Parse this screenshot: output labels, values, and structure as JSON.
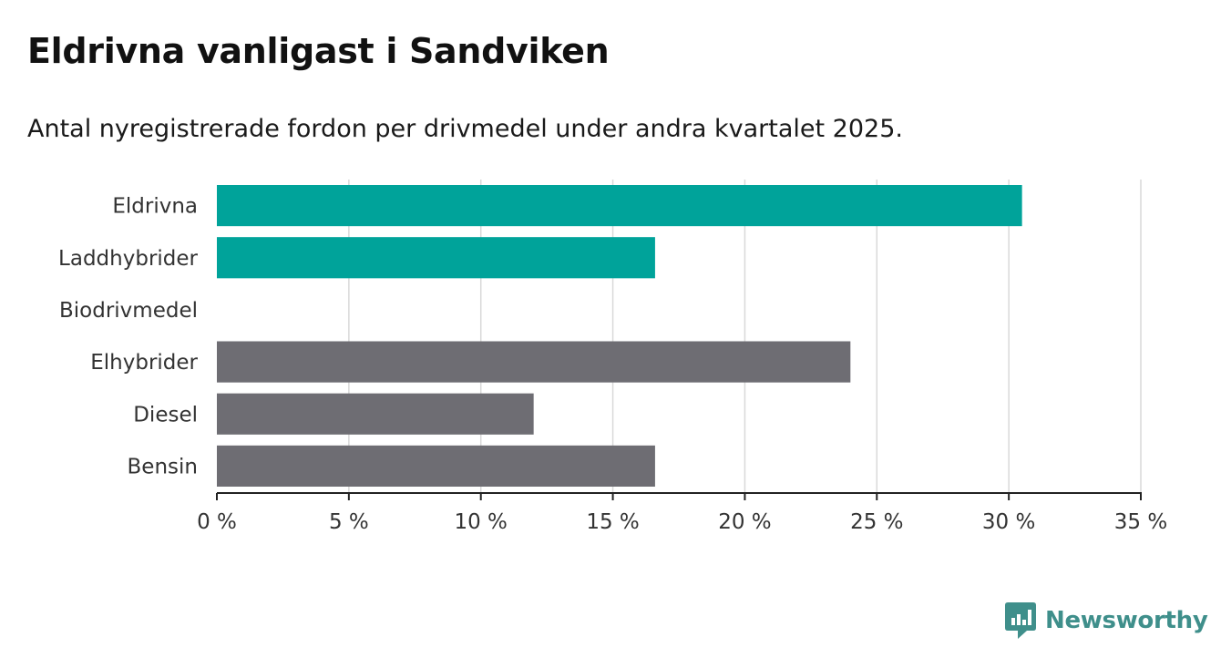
{
  "header": {
    "title": "Eldrivna vanligast i Sandviken",
    "subtitle": "Antal nyregistrerade fordon per drivmedel under andra kvartalet 2025."
  },
  "chart_data": {
    "type": "bar",
    "orientation": "horizontal",
    "categories": [
      "Eldrivna",
      "Laddhybrider",
      "Biodrivmedel",
      "Elhybrider",
      "Diesel",
      "Bensin"
    ],
    "values": [
      30.5,
      16.6,
      0,
      24.0,
      12.0,
      16.6
    ],
    "colors": [
      "#00a39a",
      "#00a39a",
      "#00a39a",
      "#6e6d73",
      "#6e6d73",
      "#6e6d73"
    ],
    "xlim": [
      0,
      35
    ],
    "xticks": [
      0,
      5,
      10,
      15,
      20,
      25,
      30,
      35
    ],
    "xtick_labels": [
      "0 %",
      "5 %",
      "10 %",
      "15 %",
      "20 %",
      "25 %",
      "30 %",
      "35 %"
    ],
    "grid": true
  },
  "brand": {
    "name": "Newsworthy",
    "icon": "newsworthy-logo-icon",
    "color": "#3f8f8b"
  }
}
